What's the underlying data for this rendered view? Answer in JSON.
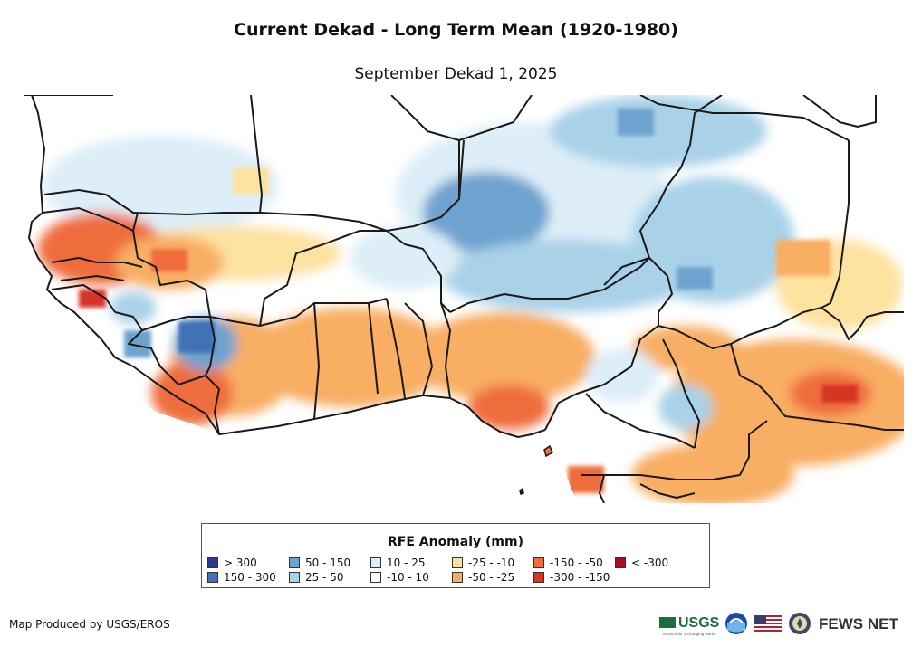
{
  "title": "Current Dekad - Long Term Mean (1920-1980)",
  "subtitle": "September Dekad 1, 2025",
  "legend": {
    "title": "RFE Anomaly (mm)",
    "items": [
      {
        "label": "> 300",
        "color": "#2a3a8f"
      },
      {
        "label": "150 - 300",
        "color": "#3f72b5"
      },
      {
        "label": "50 - 150",
        "color": "#6ea3cf"
      },
      {
        "label": "25 - 50",
        "color": "#a9d2e8"
      },
      {
        "label": "10 - 25",
        "color": "#ddeef8"
      },
      {
        "label": "-10 - 10",
        "color": "#ffffff"
      },
      {
        "label": "-25 - -10",
        "color": "#fde2a0"
      },
      {
        "label": "-50 - -25",
        "color": "#f8ae63"
      },
      {
        "label": "-150 - -50",
        "color": "#ef6d3c"
      },
      {
        "label": "-300 - -150",
        "color": "#d63425"
      },
      {
        "label": "< -300",
        "color": "#a50c26"
      }
    ]
  },
  "credit": "Map Produced by USGS/EROS",
  "logos": {
    "usgs": "USGS",
    "usgs_tagline": "science for a changing world",
    "fews": "FEWS NET"
  },
  "icons": [
    "usgs-logo",
    "noaa-logo-icon",
    "us-flag-icon",
    "state-department-seal-icon"
  ]
}
